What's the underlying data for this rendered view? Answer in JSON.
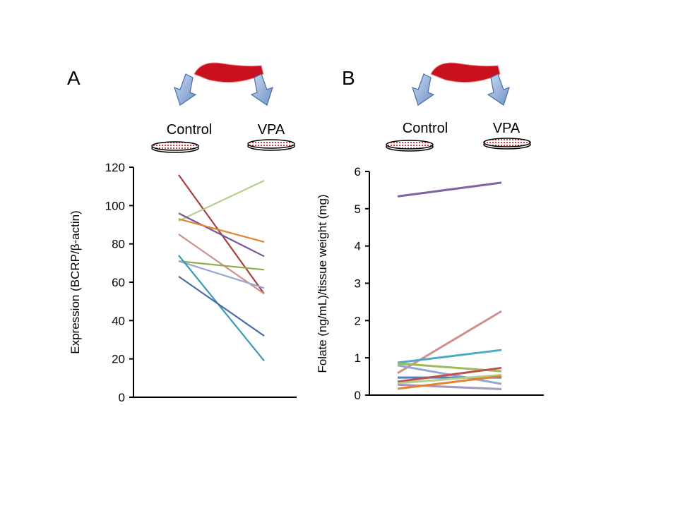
{
  "colors": {
    "darkred": "#A8403C",
    "lightgreen": "#B4CE8E",
    "purple": "#735494",
    "orange": "#E5822F",
    "pink": "#D28E8C",
    "green": "#8DAF4D",
    "lightblue": "#93A9CF",
    "teal": "#3A9BB2",
    "darkblue": "#4A6DA6",
    "red": "#C0504D",
    "lavender": "#A797BE",
    "cyan": "#4BACC6",
    "blue": "#4F81BD"
  },
  "chart_data": [
    {
      "type": "line",
      "panel_label": "A",
      "title": "",
      "xlabel": "",
      "ylabel": "Expression (BCRP/β-actin)",
      "categories": [
        "Control",
        "VPA"
      ],
      "ylim": [
        0,
        120
      ],
      "yticks": [
        0,
        20,
        40,
        60,
        80,
        100,
        120
      ],
      "series": [
        {
          "name": "s1",
          "color": "#A8403C",
          "values": [
            116,
            54
          ]
        },
        {
          "name": "s2",
          "color": "#B4CE8E",
          "values": [
            92,
            113
          ]
        },
        {
          "name": "s3",
          "color": "#735494",
          "values": [
            96,
            73.5
          ]
        },
        {
          "name": "s4",
          "color": "#E5822F",
          "values": [
            93,
            81
          ]
        },
        {
          "name": "s5",
          "color": "#D28E8C",
          "values": [
            85,
            54
          ]
        },
        {
          "name": "s6",
          "color": "#8DAF4D",
          "values": [
            71,
            66.5
          ]
        },
        {
          "name": "s7",
          "color": "#93A9CF",
          "values": [
            71,
            57
          ]
        },
        {
          "name": "s8",
          "color": "#3A9BB2",
          "values": [
            74,
            19
          ]
        },
        {
          "name": "s9",
          "color": "#4A6DA6",
          "values": [
            63,
            32
          ]
        }
      ]
    },
    {
      "type": "line",
      "panel_label": "B",
      "title": "",
      "xlabel": "",
      "ylabel": "Folate (ng/mL)/tissue  weight (mg)",
      "categories": [
        "Control",
        "VPA"
      ],
      "ylim": [
        0,
        6
      ],
      "yticks": [
        0,
        1,
        2,
        3,
        4,
        5,
        6
      ],
      "series": [
        {
          "name": "s1",
          "color": "#8064A2",
          "values": [
            5.33,
            5.7
          ]
        },
        {
          "name": "s2",
          "color": "#D28E8C",
          "values": [
            0.59,
            2.25
          ]
        },
        {
          "name": "s3",
          "color": "#4BACC6",
          "values": [
            0.87,
            1.21
          ]
        },
        {
          "name": "s4",
          "color": "#9BBB59",
          "values": [
            0.85,
            0.64
          ]
        },
        {
          "name": "s5",
          "color": "#93A9CF",
          "values": [
            0.8,
            0.3
          ]
        },
        {
          "name": "s6",
          "color": "#4F81BD",
          "values": [
            0.47,
            0.47
          ]
        },
        {
          "name": "s7",
          "color": "#C0504D",
          "values": [
            0.36,
            0.73
          ]
        },
        {
          "name": "s8",
          "color": "#B4CE8E",
          "values": [
            0.32,
            0.54
          ]
        },
        {
          "name": "s9",
          "color": "#A797BE",
          "values": [
            0.28,
            0.16
          ]
        },
        {
          "name": "s10",
          "color": "#E5822F",
          "values": [
            0.17,
            0.51
          ]
        }
      ]
    }
  ]
}
